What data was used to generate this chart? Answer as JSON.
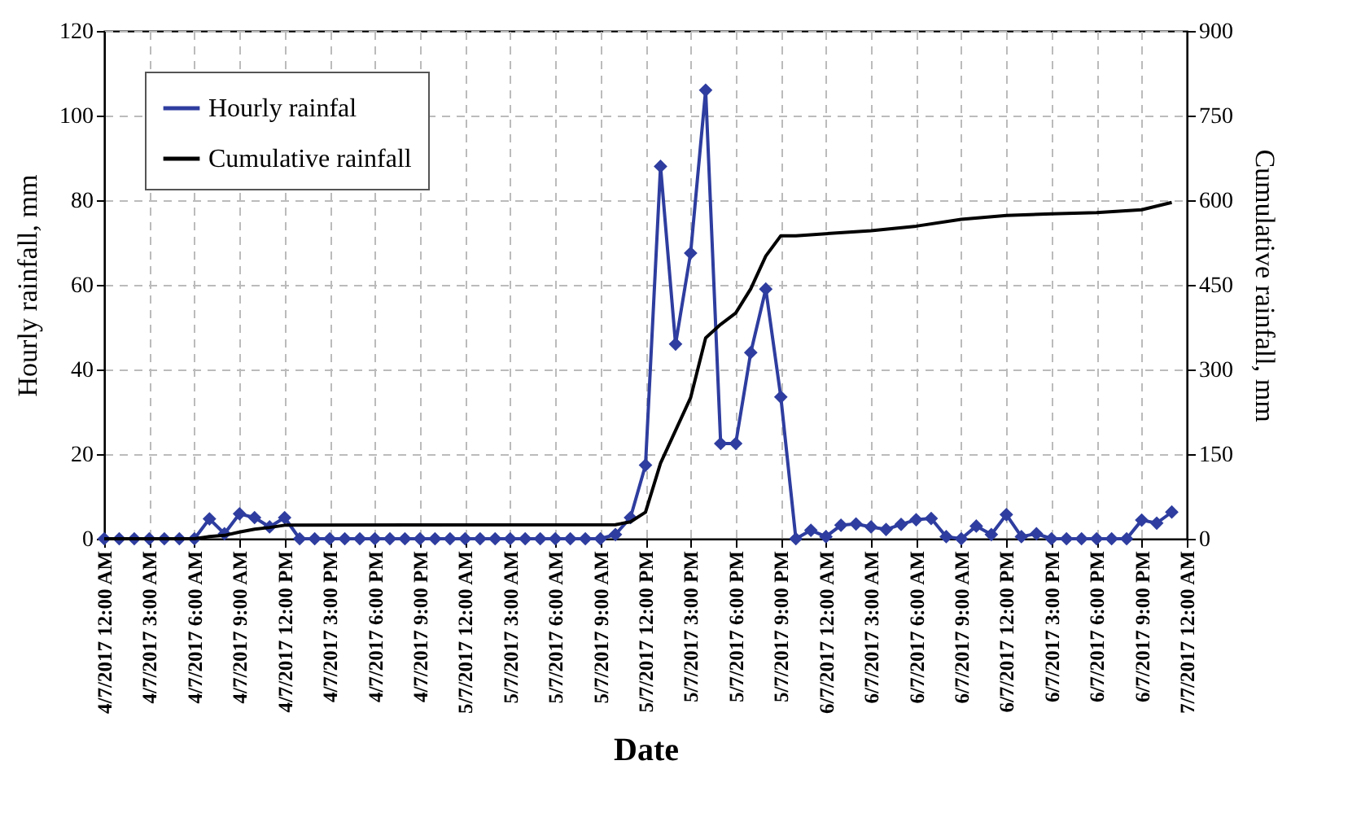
{
  "chart_data": {
    "type": "line",
    "xlabel": "Date",
    "ylabel": "Hourly rainfall, mm",
    "y2label": "Cumulative rainfall, mm",
    "xlim": [
      "2017-07-04T00:00",
      "2017-07-07T00:00"
    ],
    "xticks": [
      {
        "value": "2017-07-04T00:00",
        "label": "4/7/2017 12:00 AM"
      },
      {
        "value": "2017-07-04T03:00",
        "label": "4/7/2017 3:00 AM"
      },
      {
        "value": "2017-07-04T06:00",
        "label": "4/7/2017 6:00 AM"
      },
      {
        "value": "2017-07-04T09:00",
        "label": "4/7/2017 9:00 AM"
      },
      {
        "value": "2017-07-04T12:00",
        "label": "4/7/2017 12:00 PM"
      },
      {
        "value": "2017-07-04T15:00",
        "label": "4/7/2017 3:00 PM"
      },
      {
        "value": "2017-07-04T18:00",
        "label": "4/7/2017 6:00 PM"
      },
      {
        "value": "2017-07-04T21:00",
        "label": "4/7/2017 9:00 PM"
      },
      {
        "value": "2017-07-05T00:00",
        "label": "5/7/2017 12:00 AM"
      },
      {
        "value": "2017-07-05T03:00",
        "label": "5/7/2017 3:00 AM"
      },
      {
        "value": "2017-07-05T06:00",
        "label": "5/7/2017 6:00 AM"
      },
      {
        "value": "2017-07-05T09:00",
        "label": "5/7/2017 9:00 AM"
      },
      {
        "value": "2017-07-05T12:00",
        "label": "5/7/2017 12:00 PM"
      },
      {
        "value": "2017-07-05T15:00",
        "label": "5/7/2017 3:00 PM"
      },
      {
        "value": "2017-07-05T18:00",
        "label": "5/7/2017 6:00 PM"
      },
      {
        "value": "2017-07-05T21:00",
        "label": "5/7/2017 9:00 PM"
      },
      {
        "value": "2017-07-06T00:00",
        "label": "6/7/2017 12:00 AM"
      },
      {
        "value": "2017-07-06T03:00",
        "label": "6/7/2017 3:00 AM"
      },
      {
        "value": "2017-07-06T06:00",
        "label": "6/7/2017 6:00 AM"
      },
      {
        "value": "2017-07-06T09:00",
        "label": "6/7/2017 9:00 AM"
      },
      {
        "value": "2017-07-06T12:00",
        "label": "6/7/2017 12:00 PM"
      },
      {
        "value": "2017-07-06T15:00",
        "label": "6/7/2017 3:00 PM"
      },
      {
        "value": "2017-07-06T18:00",
        "label": "6/7/2017 6:00 PM"
      },
      {
        "value": "2017-07-06T21:00",
        "label": "6/7/2017 9:00 PM"
      },
      {
        "value": "2017-07-07T00:00",
        "label": "7/7/2017 12:00 AM"
      }
    ],
    "ylim": [
      0,
      120
    ],
    "yticks": [
      0,
      20,
      40,
      60,
      80,
      100,
      120
    ],
    "y2lim": [
      0,
      900
    ],
    "y2ticks": [
      0,
      150,
      300,
      450,
      600,
      750,
      900
    ],
    "grid": true,
    "legend": "top left",
    "series": [
      {
        "name": "Hourly rainfal",
        "color": "#2e3d9f",
        "marker": "diamond",
        "line_style": "solid",
        "x": [
          "2017-07-04T00:00",
          "2017-07-04T01:00",
          "2017-07-04T02:00",
          "2017-07-04T03:00",
          "2017-07-04T04:00",
          "2017-07-04T05:00",
          "2017-07-04T06:00",
          "2017-07-04T07:00",
          "2017-07-04T08:00",
          "2017-07-04T09:00",
          "2017-07-04T10:00",
          "2017-07-04T11:00",
          "2017-07-04T12:00",
          "2017-07-04T13:00",
          "2017-07-04T14:00",
          "2017-07-04T15:00",
          "2017-07-04T16:00",
          "2017-07-04T17:00",
          "2017-07-04T18:00",
          "2017-07-04T19:00",
          "2017-07-04T20:00",
          "2017-07-04T21:00",
          "2017-07-04T22:00",
          "2017-07-04T23:00",
          "2017-07-05T00:00",
          "2017-07-05T01:00",
          "2017-07-05T02:00",
          "2017-07-05T03:00",
          "2017-07-05T04:00",
          "2017-07-05T05:00",
          "2017-07-05T06:00",
          "2017-07-05T07:00",
          "2017-07-05T08:00",
          "2017-07-05T09:00",
          "2017-07-05T10:00",
          "2017-07-05T11:00",
          "2017-07-05T12:00",
          "2017-07-05T13:00",
          "2017-07-05T14:00",
          "2017-07-05T15:00",
          "2017-07-05T16:00",
          "2017-07-05T17:00",
          "2017-07-05T18:00",
          "2017-07-05T19:00",
          "2017-07-05T20:00",
          "2017-07-05T21:00",
          "2017-07-05T22:00",
          "2017-07-05T23:00",
          "2017-07-06T00:00",
          "2017-07-06T01:00",
          "2017-07-06T02:00",
          "2017-07-06T03:00",
          "2017-07-06T04:00",
          "2017-07-06T05:00",
          "2017-07-06T06:00",
          "2017-07-06T07:00",
          "2017-07-06T08:00",
          "2017-07-06T09:00",
          "2017-07-06T10:00",
          "2017-07-06T11:00",
          "2017-07-06T12:00",
          "2017-07-06T13:00",
          "2017-07-06T14:00",
          "2017-07-06T15:00",
          "2017-07-06T16:00",
          "2017-07-06T17:00",
          "2017-07-06T18:00",
          "2017-07-06T19:00",
          "2017-07-06T20:00",
          "2017-07-06T21:00",
          "2017-07-06T22:00",
          "2017-07-06T23:00"
        ],
        "values": [
          0,
          0,
          0,
          0,
          0,
          0,
          0,
          4.7,
          1.2,
          5.9,
          5,
          2.8,
          5,
          0,
          0,
          0,
          0,
          0,
          0,
          0,
          0,
          0,
          0,
          0,
          0,
          0,
          0,
          0,
          0,
          0,
          0,
          0,
          0,
          0,
          1,
          5,
          17.4,
          88,
          46,
          67.5,
          106,
          22.5,
          22.5,
          44,
          59,
          33.5,
          0,
          2,
          0.5,
          3.2,
          3.5,
          2.8,
          2.2,
          3.4,
          4.5,
          4.8,
          0.5,
          0,
          3,
          1,
          5.7,
          0.5,
          1.2,
          0,
          0,
          0,
          0,
          0,
          0,
          4.4,
          3.7,
          6.3
        ]
      },
      {
        "name": "Cumulative rainfall",
        "color": "#000000",
        "axis": "y2",
        "marker": "none",
        "line_style": "solid",
        "x": [
          "2017-07-04T00:00",
          "2017-07-04T06:00",
          "2017-07-04T07:00",
          "2017-07-04T08:00",
          "2017-07-04T09:00",
          "2017-07-04T10:00",
          "2017-07-04T11:00",
          "2017-07-04T12:00",
          "2017-07-05T10:00",
          "2017-07-05T11:00",
          "2017-07-05T12:00",
          "2017-07-05T13:00",
          "2017-07-05T14:00",
          "2017-07-05T15:00",
          "2017-07-05T16:00",
          "2017-07-05T17:00",
          "2017-07-05T18:00",
          "2017-07-05T19:00",
          "2017-07-05T20:00",
          "2017-07-05T21:00",
          "2017-07-05T22:00",
          "2017-07-06T03:00",
          "2017-07-06T06:00",
          "2017-07-06T09:00",
          "2017-07-06T12:00",
          "2017-07-06T15:00",
          "2017-07-06T18:00",
          "2017-07-06T21:00",
          "2017-07-06T23:00"
        ],
        "values": [
          0,
          0,
          4,
          6,
          12,
          17,
          20,
          24,
          25,
          30,
          47,
          134,
          192,
          250,
          356,
          380,
          400,
          443,
          501,
          537,
          537,
          546,
          554,
          566,
          573,
          576,
          578,
          583,
          596
        ]
      }
    ]
  }
}
